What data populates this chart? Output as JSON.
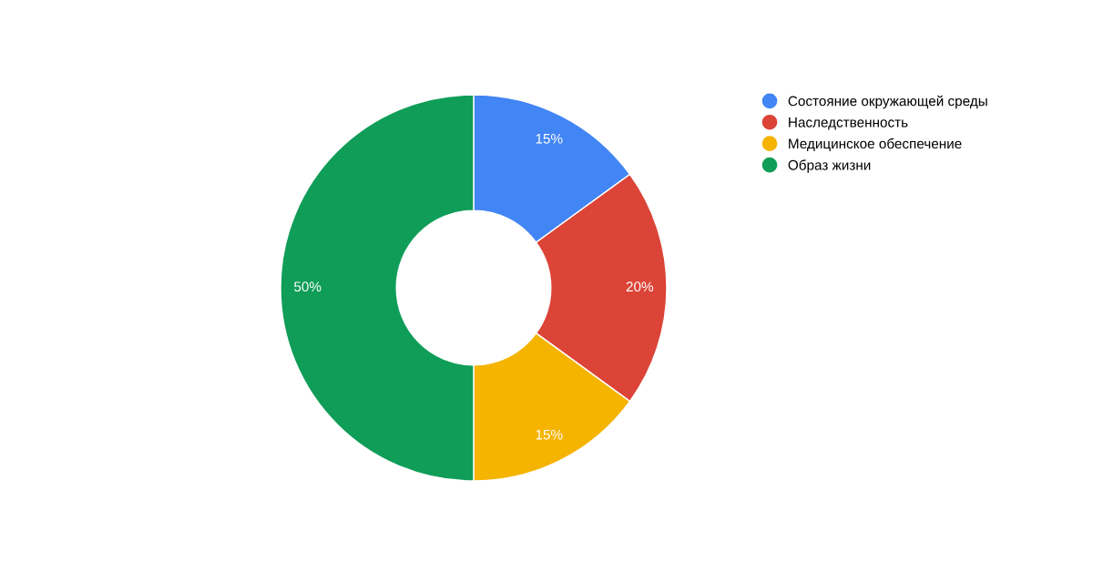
{
  "chart_data": {
    "type": "donut",
    "categories": [
      "Состояние окружающей среды",
      "Наследственность",
      "Медицинское обеспечение",
      "Образ жизни"
    ],
    "values": [
      15,
      20,
      15,
      50
    ],
    "colors": [
      "#4285f4",
      "#db4437",
      "#f4b400",
      "#0f9d58"
    ],
    "value_labels": [
      "15%",
      "20%",
      "15%",
      "50%"
    ],
    "legend": "top right"
  }
}
